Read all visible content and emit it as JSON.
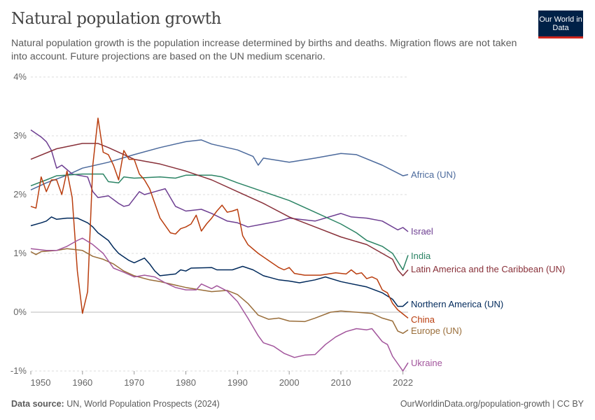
{
  "header": {
    "title": "Natural population growth",
    "subtitle": "Natural population growth is the population increase determined by births and deaths. Migration flows are not taken into account. Future projections are based on the UN medium scenario.",
    "logo_text": "Our World in Data"
  },
  "footer": {
    "source_label": "Data source:",
    "source": "UN, World Population Prospects (2024)",
    "url": "OurWorldinData.org/population-growth | CC BY"
  },
  "chart_data": {
    "type": "line",
    "title": "Natural population growth",
    "xlim": [
      1950,
      2023
    ],
    "ylim": [
      -1,
      4
    ],
    "x_ticks": [
      1950,
      1960,
      1970,
      1980,
      1990,
      2000,
      2010,
      2022
    ],
    "y_ticks": [
      {
        "v": 4,
        "label": "4%"
      },
      {
        "v": 3,
        "label": "3%"
      },
      {
        "v": 2,
        "label": "2%"
      },
      {
        "v": 1,
        "label": "1%"
      },
      {
        "v": 0,
        "label": "0%"
      },
      {
        "v": -1,
        "label": "-1%"
      }
    ],
    "grid": true,
    "legend": "inline-right",
    "series": [
      {
        "name": "Africa (UN)",
        "color": "#4c6a9c",
        "points": [
          [
            1950,
            2.08
          ],
          [
            1953,
            2.2
          ],
          [
            1957,
            2.33
          ],
          [
            1960,
            2.45
          ],
          [
            1965,
            2.55
          ],
          [
            1970,
            2.68
          ],
          [
            1975,
            2.8
          ],
          [
            1980,
            2.9
          ],
          [
            1983,
            2.93
          ],
          [
            1985,
            2.86
          ],
          [
            1990,
            2.76
          ],
          [
            1993,
            2.65
          ],
          [
            1994,
            2.5
          ],
          [
            1995,
            2.62
          ],
          [
            2000,
            2.55
          ],
          [
            2005,
            2.62
          ],
          [
            2010,
            2.7
          ],
          [
            2013,
            2.68
          ],
          [
            2018,
            2.5
          ],
          [
            2022,
            2.32
          ],
          [
            2023,
            2.34
          ]
        ]
      },
      {
        "name": "Israel",
        "color": "#6d3e91",
        "points": [
          [
            1950,
            3.1
          ],
          [
            1952,
            2.98
          ],
          [
            1953,
            2.9
          ],
          [
            1954,
            2.75
          ],
          [
            1955,
            2.45
          ],
          [
            1956,
            2.5
          ],
          [
            1958,
            2.35
          ],
          [
            1961,
            2.3
          ],
          [
            1962,
            2.05
          ],
          [
            1963,
            1.95
          ],
          [
            1965,
            1.98
          ],
          [
            1967,
            1.85
          ],
          [
            1968,
            1.8
          ],
          [
            1969,
            1.82
          ],
          [
            1971,
            2.05
          ],
          [
            1972,
            2.0
          ],
          [
            1974,
            2.05
          ],
          [
            1976,
            2.1
          ],
          [
            1978,
            1.8
          ],
          [
            1980,
            1.72
          ],
          [
            1983,
            1.75
          ],
          [
            1985,
            1.68
          ],
          [
            1988,
            1.55
          ],
          [
            1990,
            1.52
          ],
          [
            1992,
            1.45
          ],
          [
            1995,
            1.5
          ],
          [
            1998,
            1.55
          ],
          [
            2000,
            1.6
          ],
          [
            2003,
            1.57
          ],
          [
            2005,
            1.55
          ],
          [
            2010,
            1.68
          ],
          [
            2012,
            1.62
          ],
          [
            2015,
            1.6
          ],
          [
            2018,
            1.55
          ],
          [
            2021,
            1.4
          ],
          [
            2022,
            1.44
          ],
          [
            2023,
            1.37
          ]
        ]
      },
      {
        "name": "India",
        "color": "#2c8465",
        "points": [
          [
            1950,
            2.15
          ],
          [
            1953,
            2.25
          ],
          [
            1955,
            2.32
          ],
          [
            1960,
            2.35
          ],
          [
            1964,
            2.35
          ],
          [
            1965,
            2.22
          ],
          [
            1967,
            2.2
          ],
          [
            1968,
            2.3
          ],
          [
            1970,
            2.28
          ],
          [
            1975,
            2.3
          ],
          [
            1978,
            2.28
          ],
          [
            1980,
            2.33
          ],
          [
            1985,
            2.33
          ],
          [
            1987,
            2.3
          ],
          [
            1990,
            2.2
          ],
          [
            1995,
            2.05
          ],
          [
            2000,
            1.9
          ],
          [
            2005,
            1.7
          ],
          [
            2010,
            1.5
          ],
          [
            2013,
            1.35
          ],
          [
            2015,
            1.22
          ],
          [
            2018,
            1.12
          ],
          [
            2020,
            1.0
          ],
          [
            2022,
            0.72
          ],
          [
            2023,
            0.97
          ]
        ]
      },
      {
        "name": "Latin America and the Caribbean (UN)",
        "color": "#883039",
        "points": [
          [
            1950,
            2.6
          ],
          [
            1955,
            2.78
          ],
          [
            1960,
            2.87
          ],
          [
            1963,
            2.87
          ],
          [
            1965,
            2.8
          ],
          [
            1970,
            2.6
          ],
          [
            1975,
            2.52
          ],
          [
            1980,
            2.4
          ],
          [
            1985,
            2.25
          ],
          [
            1990,
            2.05
          ],
          [
            1995,
            1.85
          ],
          [
            2000,
            1.62
          ],
          [
            2005,
            1.45
          ],
          [
            2010,
            1.28
          ],
          [
            2015,
            1.15
          ],
          [
            2018,
            1.0
          ],
          [
            2020,
            0.9
          ],
          [
            2021,
            0.72
          ],
          [
            2022,
            0.62
          ],
          [
            2023,
            0.72
          ]
        ]
      },
      {
        "name": "Northern America (UN)",
        "color": "#00295b",
        "points": [
          [
            1950,
            1.47
          ],
          [
            1952,
            1.52
          ],
          [
            1953,
            1.55
          ],
          [
            1954,
            1.62
          ],
          [
            1955,
            1.58
          ],
          [
            1957,
            1.6
          ],
          [
            1959,
            1.6
          ],
          [
            1961,
            1.52
          ],
          [
            1962,
            1.45
          ],
          [
            1963,
            1.35
          ],
          [
            1965,
            1.22
          ],
          [
            1966,
            1.1
          ],
          [
            1967,
            1.0
          ],
          [
            1969,
            0.88
          ],
          [
            1970,
            0.84
          ],
          [
            1972,
            0.92
          ],
          [
            1973,
            0.82
          ],
          [
            1974,
            0.7
          ],
          [
            1975,
            0.62
          ],
          [
            1978,
            0.65
          ],
          [
            1979,
            0.72
          ],
          [
            1980,
            0.7
          ],
          [
            1981,
            0.75
          ],
          [
            1985,
            0.76
          ],
          [
            1986,
            0.72
          ],
          [
            1989,
            0.72
          ],
          [
            1991,
            0.78
          ],
          [
            1993,
            0.72
          ],
          [
            1995,
            0.62
          ],
          [
            1998,
            0.55
          ],
          [
            2000,
            0.53
          ],
          [
            2002,
            0.5
          ],
          [
            2005,
            0.55
          ],
          [
            2007,
            0.6
          ],
          [
            2010,
            0.52
          ],
          [
            2015,
            0.43
          ],
          [
            2018,
            0.33
          ],
          [
            2020,
            0.22
          ],
          [
            2021,
            0.1
          ],
          [
            2022,
            0.1
          ],
          [
            2023,
            0.18
          ]
        ]
      },
      {
        "name": "China",
        "color": "#b93d0e",
        "points": [
          [
            1950,
            1.8
          ],
          [
            1951,
            1.77
          ],
          [
            1952,
            2.3
          ],
          [
            1953,
            2.05
          ],
          [
            1954,
            2.25
          ],
          [
            1955,
            2.25
          ],
          [
            1956,
            2.0
          ],
          [
            1957,
            2.4
          ],
          [
            1958,
            1.95
          ],
          [
            1959,
            0.7
          ],
          [
            1960,
            -0.02
          ],
          [
            1961,
            0.35
          ],
          [
            1962,
            2.5
          ],
          [
            1963,
            3.3
          ],
          [
            1964,
            2.72
          ],
          [
            1965,
            2.68
          ],
          [
            1966,
            2.5
          ],
          [
            1967,
            2.25
          ],
          [
            1968,
            2.75
          ],
          [
            1969,
            2.6
          ],
          [
            1970,
            2.6
          ],
          [
            1971,
            2.35
          ],
          [
            1972,
            2.25
          ],
          [
            1973,
            2.1
          ],
          [
            1975,
            1.6
          ],
          [
            1977,
            1.35
          ],
          [
            1978,
            1.33
          ],
          [
            1979,
            1.42
          ],
          [
            1980,
            1.45
          ],
          [
            1981,
            1.5
          ],
          [
            1982,
            1.65
          ],
          [
            1983,
            1.38
          ],
          [
            1984,
            1.5
          ],
          [
            1985,
            1.6
          ],
          [
            1986,
            1.72
          ],
          [
            1987,
            1.82
          ],
          [
            1988,
            1.7
          ],
          [
            1989,
            1.72
          ],
          [
            1990,
            1.75
          ],
          [
            1991,
            1.3
          ],
          [
            1992,
            1.15
          ],
          [
            1994,
            1.0
          ],
          [
            1996,
            0.88
          ],
          [
            1998,
            0.76
          ],
          [
            1999,
            0.72
          ],
          [
            2000,
            0.76
          ],
          [
            2001,
            0.66
          ],
          [
            2003,
            0.63
          ],
          [
            2006,
            0.63
          ],
          [
            2009,
            0.67
          ],
          [
            2011,
            0.65
          ],
          [
            2012,
            0.72
          ],
          [
            2013,
            0.65
          ],
          [
            2014,
            0.67
          ],
          [
            2015,
            0.57
          ],
          [
            2016,
            0.6
          ],
          [
            2017,
            0.56
          ],
          [
            2018,
            0.38
          ],
          [
            2019,
            0.33
          ],
          [
            2020,
            0.15
          ],
          [
            2021,
            0.04
          ],
          [
            2022,
            -0.03
          ],
          [
            2023,
            -0.1
          ]
        ]
      },
      {
        "name": "Europe (UN)",
        "color": "#996d39",
        "points": [
          [
            1950,
            1.03
          ],
          [
            1951,
            0.98
          ],
          [
            1952,
            1.03
          ],
          [
            1955,
            1.05
          ],
          [
            1957,
            1.08
          ],
          [
            1960,
            1.05
          ],
          [
            1962,
            0.95
          ],
          [
            1964,
            0.9
          ],
          [
            1966,
            0.82
          ],
          [
            1968,
            0.7
          ],
          [
            1970,
            0.62
          ],
          [
            1973,
            0.55
          ],
          [
            1975,
            0.52
          ],
          [
            1980,
            0.42
          ],
          [
            1985,
            0.35
          ],
          [
            1988,
            0.37
          ],
          [
            1990,
            0.3
          ],
          [
            1992,
            0.15
          ],
          [
            1994,
            -0.05
          ],
          [
            1996,
            -0.12
          ],
          [
            1998,
            -0.1
          ],
          [
            2000,
            -0.15
          ],
          [
            2003,
            -0.16
          ],
          [
            2005,
            -0.1
          ],
          [
            2008,
            0.0
          ],
          [
            2010,
            0.02
          ],
          [
            2013,
            0.0
          ],
          [
            2016,
            -0.02
          ],
          [
            2018,
            -0.1
          ],
          [
            2020,
            -0.15
          ],
          [
            2021,
            -0.32
          ],
          [
            2022,
            -0.36
          ],
          [
            2023,
            -0.3
          ]
        ]
      },
      {
        "name": "Ukraine",
        "color": "#a2559c",
        "points": [
          [
            1950,
            1.08
          ],
          [
            1953,
            1.05
          ],
          [
            1955,
            1.05
          ],
          [
            1957,
            1.12
          ],
          [
            1959,
            1.22
          ],
          [
            1960,
            1.26
          ],
          [
            1962,
            1.15
          ],
          [
            1964,
            1.0
          ],
          [
            1966,
            0.75
          ],
          [
            1968,
            0.68
          ],
          [
            1970,
            0.6
          ],
          [
            1972,
            0.63
          ],
          [
            1974,
            0.6
          ],
          [
            1976,
            0.5
          ],
          [
            1978,
            0.42
          ],
          [
            1980,
            0.38
          ],
          [
            1982,
            0.38
          ],
          [
            1983,
            0.48
          ],
          [
            1985,
            0.4
          ],
          [
            1986,
            0.45
          ],
          [
            1988,
            0.36
          ],
          [
            1990,
            0.18
          ],
          [
            1992,
            -0.1
          ],
          [
            1994,
            -0.4
          ],
          [
            1995,
            -0.52
          ],
          [
            1997,
            -0.58
          ],
          [
            1999,
            -0.7
          ],
          [
            2001,
            -0.77
          ],
          [
            2003,
            -0.73
          ],
          [
            2005,
            -0.72
          ],
          [
            2007,
            -0.55
          ],
          [
            2009,
            -0.42
          ],
          [
            2011,
            -0.33
          ],
          [
            2013,
            -0.28
          ],
          [
            2015,
            -0.3
          ],
          [
            2016,
            -0.28
          ],
          [
            2018,
            -0.5
          ],
          [
            2019,
            -0.55
          ],
          [
            2020,
            -0.75
          ],
          [
            2022,
            -1.0
          ],
          [
            2023,
            -0.86
          ]
        ]
      }
    ]
  }
}
